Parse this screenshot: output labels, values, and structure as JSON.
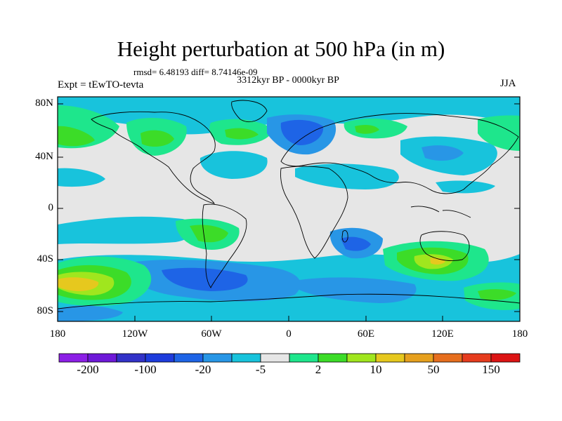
{
  "title": "Height perturbation at 500 hPa (in m)",
  "stats": "rmsd= 6.48193 diff= 8.74146e-09",
  "period": "3312kyr BP - 0000kyr BP",
  "experiment": "Expt = tEwTO-tevta",
  "season": "JJA",
  "lat_labels": [
    "80N",
    "40N",
    "0",
    "40S",
    "80S"
  ],
  "lon_labels": [
    "180",
    "120W",
    "60W",
    "0",
    "60E",
    "120E",
    "180"
  ],
  "colorbar": {
    "colors": [
      "#8c1fe6",
      "#6e19d8",
      "#3232c8",
      "#1e3cdc",
      "#1e64e6",
      "#2896e6",
      "#18c3dc",
      "#e6e6e6",
      "#1ee68c",
      "#3cdc28",
      "#a0e61e",
      "#e6c81e",
      "#e6a01e",
      "#e66e1e",
      "#e63c1e",
      "#dc1414"
    ],
    "labels": [
      "-200",
      "-100",
      "-20",
      "-5",
      "2",
      "10",
      "50",
      "150"
    ]
  },
  "colors": {
    "neutral": "#e6e6e6",
    "light_blue": "#18c3dc",
    "mid_blue": "#2896e6",
    "blue": "#1e64e6",
    "aqua_green": "#1ee68c",
    "green": "#3cdc28",
    "yellow_green": "#a0e61e",
    "yellow": "#e6c81e"
  }
}
